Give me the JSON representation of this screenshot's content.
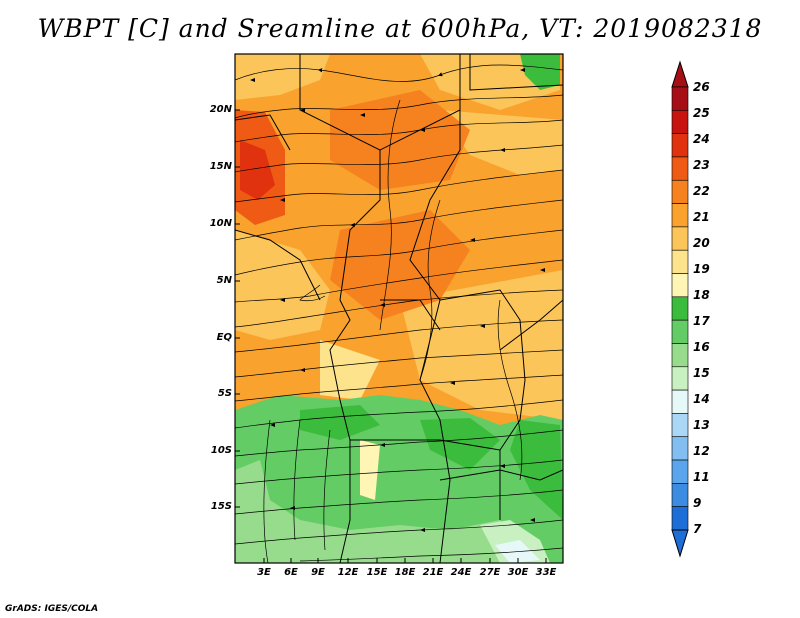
{
  "title": "WBPT [C] and Sreamline at 600hPa, VT: 2019082318",
  "credit": "GrADS: IGES/COLA",
  "map": {
    "lat_labels": [
      "20N",
      "15N",
      "10N",
      "5N",
      "EQ",
      "5S",
      "10S",
      "15S"
    ],
    "lon_labels": [
      "3E",
      "6E",
      "9E",
      "12E",
      "15E",
      "18E",
      "21E",
      "24E",
      "27E",
      "30E",
      "33E"
    ]
  },
  "colorbar": {
    "labels": [
      "26",
      "25",
      "24",
      "23",
      "22",
      "21",
      "20",
      "19",
      "18",
      "17",
      "16",
      "15",
      "14",
      "13",
      "12",
      "11",
      "9",
      "7"
    ],
    "colors": [
      "#a50f15",
      "#c8140f",
      "#e0320f",
      "#ef5a14",
      "#f5821e",
      "#f9a22e",
      "#fbc55a",
      "#fde38c",
      "#fff5b4",
      "#3cbc3c",
      "#64cc64",
      "#96dc8c",
      "#c8f0c0",
      "#e6f8f8",
      "#aad7f5",
      "#82bef0",
      "#5aa5eb",
      "#3c8ce1",
      "#1e6ed7"
    ]
  }
}
